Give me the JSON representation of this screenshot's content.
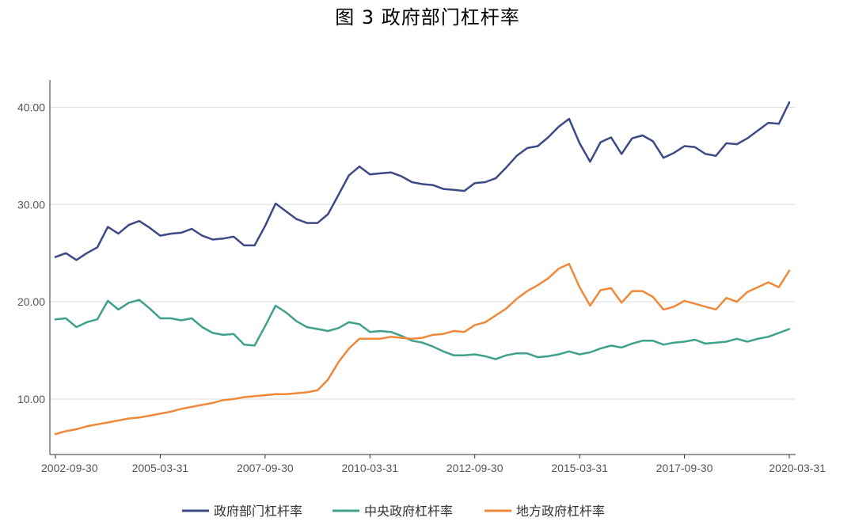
{
  "chart_data": {
    "type": "line",
    "title": "图 3 政府部门杠杆率",
    "xlabel": "",
    "ylabel": "",
    "ylim": [
      4.3,
      42.8
    ],
    "yticks": [
      "10.00",
      "20.00",
      "30.00",
      "40.00"
    ],
    "xtick_labels": [
      "2002-09-30",
      "2005-03-31",
      "2007-09-30",
      "2010-03-31",
      "2012-09-30",
      "2015-03-31",
      "2017-09-30",
      "2020-03-31"
    ],
    "grid": "horizontal",
    "legend_position": "bottom",
    "x": [
      "2002-09-30",
      "2002-12-31",
      "2003-03-31",
      "2003-06-30",
      "2003-09-30",
      "2003-12-31",
      "2004-03-31",
      "2004-06-30",
      "2004-09-30",
      "2004-12-31",
      "2005-03-31",
      "2005-06-30",
      "2005-09-30",
      "2005-12-31",
      "2006-03-31",
      "2006-06-30",
      "2006-09-30",
      "2006-12-31",
      "2007-03-31",
      "2007-06-30",
      "2007-09-30",
      "2007-12-31",
      "2008-03-31",
      "2008-06-30",
      "2008-09-30",
      "2008-12-31",
      "2009-03-31",
      "2009-06-30",
      "2009-09-30",
      "2009-12-31",
      "2010-03-31",
      "2010-06-30",
      "2010-09-30",
      "2010-12-31",
      "2011-03-31",
      "2011-06-30",
      "2011-09-30",
      "2011-12-31",
      "2012-03-31",
      "2012-06-30",
      "2012-09-30",
      "2012-12-31",
      "2013-03-31",
      "2013-06-30",
      "2013-09-30",
      "2013-12-31",
      "2014-03-31",
      "2014-06-30",
      "2014-09-30",
      "2014-12-31",
      "2015-03-31",
      "2015-06-30",
      "2015-09-30",
      "2015-12-31",
      "2016-03-31",
      "2016-06-30",
      "2016-09-30",
      "2016-12-31",
      "2017-03-31",
      "2017-06-30",
      "2017-09-30",
      "2017-12-31",
      "2018-03-31",
      "2018-06-30",
      "2018-09-30",
      "2018-12-31",
      "2019-03-31",
      "2019-06-30",
      "2019-09-30",
      "2019-12-31",
      "2020-03-31"
    ],
    "series": [
      {
        "name": "政府部门杠杆率",
        "color": "#3c4a85",
        "values": [
          24.6,
          25.0,
          24.3,
          25.0,
          25.6,
          27.7,
          27.0,
          27.9,
          28.3,
          27.6,
          26.8,
          27.0,
          27.1,
          27.5,
          26.8,
          26.4,
          26.5,
          26.7,
          25.8,
          25.8,
          27.8,
          30.1,
          29.3,
          28.5,
          28.1,
          28.1,
          29.0,
          31.0,
          33.0,
          33.9,
          33.1,
          33.2,
          33.3,
          32.9,
          32.3,
          32.1,
          32.0,
          31.6,
          31.5,
          31.4,
          32.2,
          32.3,
          32.7,
          33.8,
          35.0,
          35.8,
          36.0,
          36.9,
          38.0,
          38.8,
          36.3,
          34.4,
          36.4,
          36.9,
          35.2,
          36.8,
          37.1,
          36.5,
          34.8,
          35.3,
          36.0,
          35.9,
          35.2,
          35.0,
          36.3,
          36.2,
          36.8,
          37.6,
          38.4,
          38.3,
          40.5
        ]
      },
      {
        "name": "中央政府杠杆率",
        "color": "#3fa08c",
        "values": [
          18.2,
          18.3,
          17.4,
          17.9,
          18.2,
          20.1,
          19.2,
          19.9,
          20.2,
          19.3,
          18.3,
          18.3,
          18.1,
          18.3,
          17.4,
          16.8,
          16.6,
          16.7,
          15.6,
          15.5,
          17.5,
          19.6,
          18.9,
          18.0,
          17.4,
          17.2,
          17.0,
          17.3,
          17.9,
          17.7,
          16.9,
          17.0,
          16.9,
          16.5,
          16.0,
          15.8,
          15.4,
          14.9,
          14.5,
          14.5,
          14.6,
          14.4,
          14.1,
          14.5,
          14.7,
          14.7,
          14.3,
          14.4,
          14.6,
          14.9,
          14.6,
          14.8,
          15.2,
          15.5,
          15.3,
          15.7,
          16.0,
          16.0,
          15.6,
          15.8,
          15.9,
          16.1,
          15.7,
          15.8,
          15.9,
          16.2,
          15.9,
          16.2,
          16.4,
          16.8,
          17.2
        ]
      },
      {
        "name": "地方政府杠杆率",
        "color": "#f0883a",
        "values": [
          6.4,
          6.7,
          6.9,
          7.2,
          7.4,
          7.6,
          7.8,
          8.0,
          8.1,
          8.3,
          8.5,
          8.7,
          9.0,
          9.2,
          9.4,
          9.6,
          9.9,
          10.0,
          10.2,
          10.3,
          10.4,
          10.5,
          10.5,
          10.6,
          10.7,
          10.9,
          12.0,
          13.8,
          15.2,
          16.2,
          16.2,
          16.2,
          16.4,
          16.3,
          16.2,
          16.3,
          16.6,
          16.7,
          17.0,
          16.9,
          17.6,
          17.9,
          18.6,
          19.3,
          20.3,
          21.1,
          21.7,
          22.4,
          23.4,
          23.9,
          21.5,
          19.6,
          21.2,
          21.4,
          19.9,
          21.1,
          21.1,
          20.5,
          19.2,
          19.5,
          20.1,
          19.8,
          19.5,
          19.2,
          20.4,
          20.0,
          21.0,
          21.5,
          22.0,
          21.5,
          23.2
        ]
      }
    ]
  }
}
